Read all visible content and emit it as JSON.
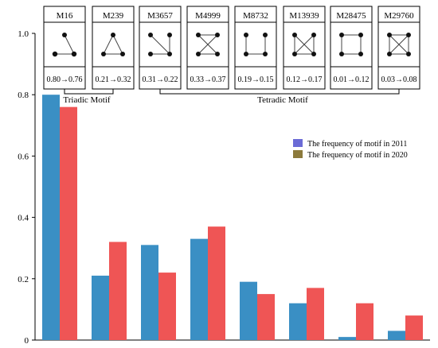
{
  "colors": {
    "bar_2011": "#3a8fc4",
    "bar_2020": "#ef5555",
    "legend_2011": "#6b6bd6",
    "legend_2020": "#8c7a3c",
    "axis": "#000000",
    "edge": "#444444"
  },
  "groups": {
    "triadic_label": "Triadic Motif",
    "tetradic_label": "Tetradic Motif"
  },
  "motifs": [
    {
      "name": "M16",
      "change": "0.80→0.76",
      "icon": "triad-path-motif"
    },
    {
      "name": "M239",
      "change": "0.21→0.32",
      "icon": "triad-cycle-motif"
    },
    {
      "name": "M3657",
      "change": "0.31→0.22",
      "icon": "tetrad-fork-motif"
    },
    {
      "name": "M4999",
      "change": "0.33→0.37",
      "icon": "tetrad-cross-motif"
    },
    {
      "name": "M8732",
      "change": "0.19→0.15",
      "icon": "tetrad-chain-motif"
    },
    {
      "name": "M13939",
      "change": "0.12→0.17",
      "icon": "tetrad-dense-motif"
    },
    {
      "name": "M28475",
      "change": "0.01→0.12",
      "icon": "tetrad-square-motif"
    },
    {
      "name": "M29760",
      "change": "0.03→0.08",
      "icon": "tetrad-complete-motif"
    }
  ],
  "chart_data": {
    "type": "bar",
    "categories": [
      "M16",
      "M239",
      "M3657",
      "M4999",
      "M8732",
      "M13939",
      "M28475",
      "M29760"
    ],
    "series": [
      {
        "name": "The frequency of motif in 2011",
        "values": [
          0.8,
          0.21,
          0.31,
          0.33,
          0.19,
          0.12,
          0.01,
          0.03
        ]
      },
      {
        "name": "The frequency of motif in 2020",
        "values": [
          0.76,
          0.32,
          0.22,
          0.37,
          0.15,
          0.17,
          0.12,
          0.08
        ]
      }
    ],
    "yticks": [
      "0",
      "0.2",
      "0.4",
      "0.6",
      "0.8",
      "1.0"
    ],
    "ylim": [
      0,
      1.0
    ],
    "legend_position": "right"
  }
}
